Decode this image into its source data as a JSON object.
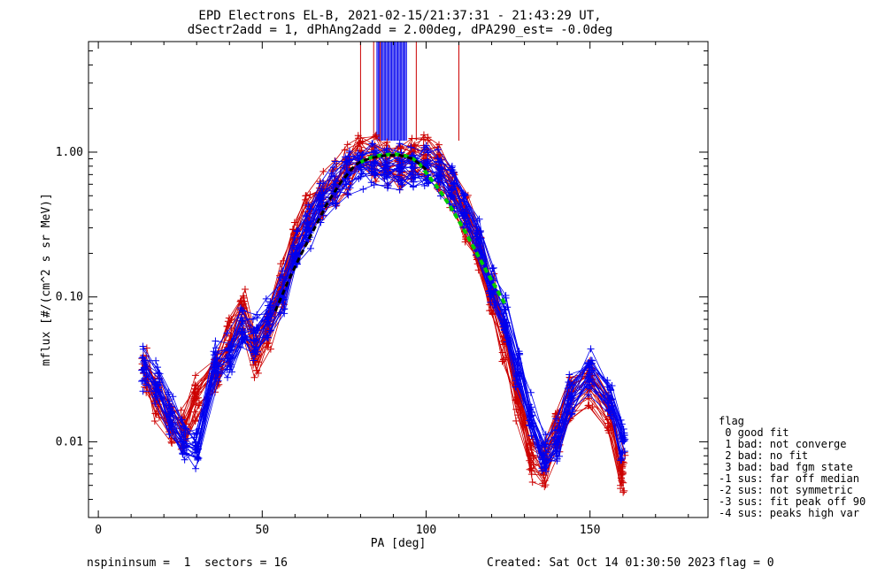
{
  "chart_data": {
    "type": "scatter",
    "title": "EPD Electrons EL-B, 2021-02-15/21:37:31 - 21:43:29 UT,",
    "subtitle": "dSectr2add = 1, dPhAng2add = 2.00deg, dPA290_est=  -0.0deg",
    "xlabel": "PA [deg]",
    "ylabel": "mflux [#/(cm^2 s sr MeV)]",
    "xlim": [
      -3,
      186
    ],
    "ylim": [
      0.003,
      5.8
    ],
    "yscale": "log",
    "x_ticks": [
      0,
      50,
      100,
      150
    ],
    "x_tick_labels": [
      "0",
      "50",
      "100",
      "150"
    ],
    "y_ticks": [
      0.01,
      0.1,
      1.0
    ],
    "y_tick_labels": [
      "0.01",
      "0.10",
      "1.00"
    ],
    "grid": false,
    "colors": {
      "red": "#cc0000",
      "blue": "#0000ee",
      "green": "#00cc00",
      "black": "#000000"
    },
    "series": [
      {
        "color": "red",
        "marker": "+",
        "x": [
          14,
          18,
          22,
          26,
          30,
          36,
          40,
          44,
          48,
          52,
          56,
          60,
          64,
          68,
          72,
          76,
          80,
          84,
          88,
          92,
          96,
          100,
          104,
          108,
          112,
          116,
          120,
          124,
          128,
          132,
          136,
          140,
          144,
          150,
          156,
          160
        ],
        "y": [
          0.03,
          0.02,
          0.014,
          0.012,
          0.02,
          0.03,
          0.05,
          0.08,
          0.04,
          0.06,
          0.12,
          0.25,
          0.35,
          0.5,
          0.6,
          0.78,
          0.95,
          0.9,
          0.85,
          0.82,
          0.88,
          0.9,
          0.8,
          0.55,
          0.35,
          0.2,
          0.1,
          0.05,
          0.02,
          0.008,
          0.007,
          0.012,
          0.02,
          0.025,
          0.015,
          0.006
        ]
      },
      {
        "color": "blue",
        "marker": "+",
        "x": [
          14,
          18,
          22,
          26,
          30,
          36,
          40,
          44,
          48,
          52,
          56,
          60,
          64,
          68,
          72,
          76,
          80,
          84,
          88,
          92,
          96,
          100,
          104,
          108,
          112,
          116,
          120,
          124,
          128,
          132,
          136,
          140,
          144,
          150,
          156,
          160
        ],
        "y": [
          0.032,
          0.025,
          0.015,
          0.01,
          0.009,
          0.035,
          0.04,
          0.06,
          0.05,
          0.07,
          0.1,
          0.2,
          0.3,
          0.45,
          0.6,
          0.72,
          0.78,
          0.8,
          0.79,
          0.78,
          0.8,
          0.78,
          0.7,
          0.55,
          0.4,
          0.25,
          0.12,
          0.07,
          0.03,
          0.015,
          0.008,
          0.01,
          0.02,
          0.03,
          0.02,
          0.01
        ]
      },
      {
        "color": "green",
        "style": "dashed-fit",
        "x": [
          80,
          82,
          84,
          86,
          88,
          90,
          92,
          94,
          96,
          98,
          100,
          104,
          108,
          112,
          116,
          120,
          124
        ],
        "y": [
          0.85,
          0.9,
          0.93,
          0.95,
          0.96,
          0.97,
          0.96,
          0.94,
          0.9,
          0.83,
          0.72,
          0.55,
          0.4,
          0.28,
          0.19,
          0.13,
          0.09
        ]
      },
      {
        "color": "black",
        "style": "dashed-fit",
        "x": [
          54,
          58,
          62,
          66,
          70,
          74,
          78,
          80,
          84,
          88,
          92,
          96,
          100
        ],
        "y": [
          0.08,
          0.13,
          0.2,
          0.3,
          0.45,
          0.62,
          0.8,
          0.86,
          0.92,
          0.95,
          0.95,
          0.9,
          0.76
        ]
      }
    ],
    "vertical_lines_red": [
      80,
      84,
      86,
      97,
      110
    ],
    "vertical_lines_blue_range": [
      85,
      94
    ],
    "legend": {
      "placement": "right",
      "title": "flag",
      "entries": [
        " 0 good fit",
        " 1 bad: not converge",
        " 2 bad: no fit",
        " 3 bad: bad fgm state",
        "-1 sus: far off median",
        "-2 sus: not symmetric",
        "-3 sus: fit peak off 90",
        "-4 sus: peaks high var"
      ]
    }
  },
  "footer": {
    "left": "nspininsum =  1  sectors = 16",
    "created": "Created: Sat Oct 14 01:30:50 2023",
    "flag": "flag = 0"
  }
}
